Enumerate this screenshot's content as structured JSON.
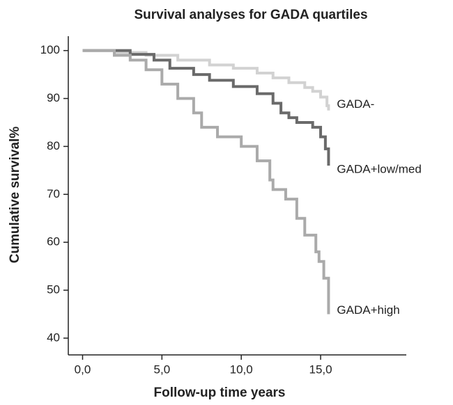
{
  "chart_data": {
    "type": "step",
    "title": "Survival analyses for GADA quartiles",
    "x_label": "Follow-up time years",
    "y_label": "Cumulative survival%",
    "xlim": [
      -0.9,
      20.4
    ],
    "ylim": [
      36.5,
      103
    ],
    "xticks": [
      {
        "value": 0,
        "label": "0,0"
      },
      {
        "value": 5,
        "label": "5,0"
      },
      {
        "value": 10,
        "label": "10,0"
      },
      {
        "value": 15,
        "label": "15,0"
      }
    ],
    "yticks": [
      40,
      50,
      60,
      70,
      80,
      90,
      100
    ],
    "series": [
      {
        "name": "GADA-",
        "color": "#d2d2d2",
        "x": [
          0,
          2,
          4,
          6,
          8,
          9.5,
          11,
          12,
          13,
          14,
          14.5,
          15,
          15.4,
          15.5
        ],
        "values": [
          100,
          99.6,
          99,
          98,
          97,
          96.3,
          95.3,
          94.3,
          93.3,
          92.3,
          91.5,
          90.3,
          88.5,
          87.5
        ]
      },
      {
        "name": "GADA+low/med",
        "color": "#6a6a6a",
        "x": [
          0,
          3,
          4.5,
          5.5,
          7,
          8,
          9.5,
          11,
          12,
          12.5,
          13,
          13.5,
          14.5,
          15,
          15.3,
          15.5
        ],
        "values": [
          100,
          99.2,
          98,
          96.3,
          95,
          93.8,
          92.5,
          91,
          89,
          87,
          86,
          85,
          84,
          82,
          79.5,
          76
        ]
      },
      {
        "name": "GADA+high",
        "color": "#aaaaaa",
        "x": [
          0,
          2,
          3,
          4,
          5,
          6,
          7,
          7.5,
          8.5,
          10,
          11,
          11.8,
          12,
          12.8,
          13.5,
          14,
          14.7,
          14.9,
          15.2,
          15.5
        ],
        "values": [
          100,
          99,
          98,
          96,
          93,
          90,
          87,
          84,
          82,
          80,
          77,
          73,
          71,
          69,
          65,
          61.5,
          58,
          56,
          52.5,
          45
        ]
      }
    ]
  }
}
